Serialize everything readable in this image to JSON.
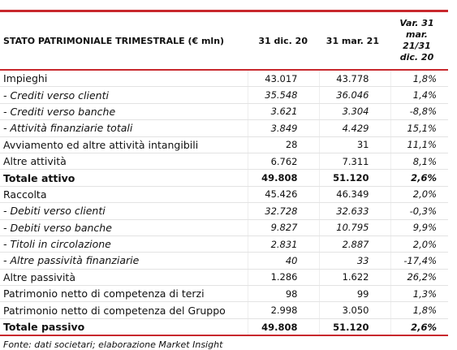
{
  "table": {
    "header": [
      "STATO PATRIMONIALE TRIMESTRALE (€ mln)",
      "31 dic. 20",
      "31 mar. 21",
      "Var. 31 mar. 21/31 dic. 20"
    ],
    "rows": [
      [
        "Impieghi",
        "43.017",
        "43.778",
        "1,8%"
      ],
      [
        "- Crediti verso clienti",
        "35.548",
        "36.046",
        "1,4%"
      ],
      [
        "- Crediti verso banche",
        "3.621",
        "3.304",
        "-8,8%"
      ],
      [
        "- Attività finanziarie totali",
        "3.849",
        "4.429",
        "15,1%"
      ],
      [
        "Avviamento ed altre attività intangibili",
        "28",
        "31",
        "11,1%"
      ],
      [
        "Altre attività",
        "6.762",
        "7.311",
        "8,1%"
      ],
      [
        "Totale attivo",
        "49.808",
        "51.120",
        "2,6%"
      ],
      [
        "Raccolta",
        "45.426",
        "46.349",
        "2,0%"
      ],
      [
        "- Debiti verso clienti",
        "32.728",
        "32.633",
        "-0,3%"
      ],
      [
        "- Debiti verso banche",
        "9.827",
        "10.795",
        "9,9%"
      ],
      [
        "- Titoli in circolazione",
        "2.831",
        "2.887",
        "2,0%"
      ],
      [
        "- Altre passività finanziarie",
        "40",
        "33",
        "-17,4%"
      ],
      [
        "Altre passività",
        "1.286",
        "1.622",
        "26,2%"
      ],
      [
        "Patrimonio netto di competenza di terzi",
        "98",
        "99",
        "1,3%"
      ],
      [
        "Patrimonio netto di competenza del Gruppo",
        "2.998",
        "3.050",
        "1,8%"
      ],
      [
        "Totale passivo",
        "49.808",
        "51.120",
        "2,6%"
      ]
    ],
    "footnote": "Fonte: dati societari; elaborazione Market Insight"
  }
}
